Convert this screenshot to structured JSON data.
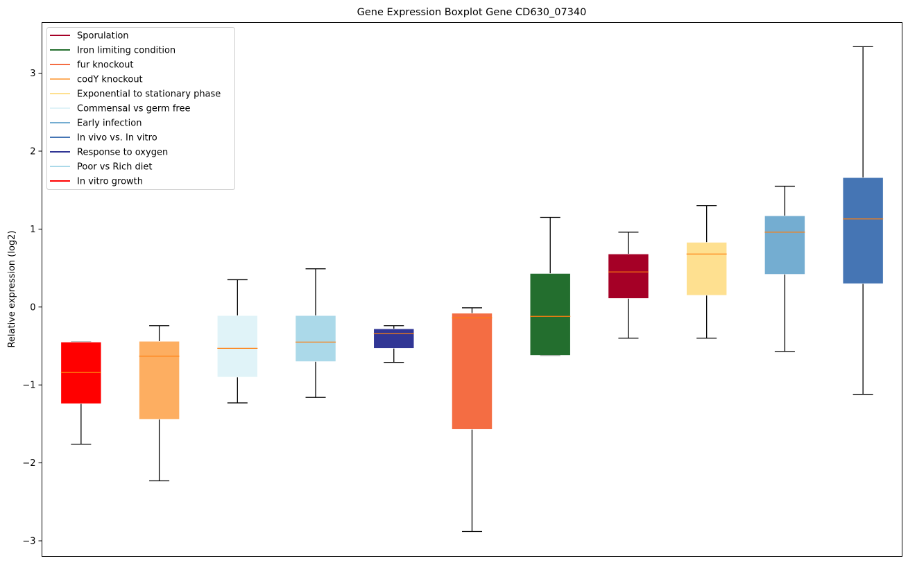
{
  "chart_data": {
    "type": "boxplot",
    "title": "Gene Expression Boxplot Gene CD630_07340",
    "xlabel": "",
    "ylabel": "Relative expression (log2)",
    "ylim": [
      -3.2,
      3.65
    ],
    "yticks": [
      -3,
      -2,
      -1,
      0,
      1,
      2,
      3
    ],
    "ytick_labels": [
      "−3",
      "−2",
      "−1",
      "0",
      "1",
      "2",
      "3"
    ],
    "grid": false,
    "legend_position": "top-left",
    "median_color": "#ff7f0e",
    "legend": [
      {
        "label": "Sporulation",
        "color": "#a50026"
      },
      {
        "label": "Iron limiting condition",
        "color": "#236e2e"
      },
      {
        "label": "fur knockout",
        "color": "#f46d43"
      },
      {
        "label": "codY knockout",
        "color": "#fdae61"
      },
      {
        "label": "Exponential to stationary phase",
        "color": "#fee090"
      },
      {
        "label": "Commensal vs germ free",
        "color": "#e0f3f8"
      },
      {
        "label": "Early infection",
        "color": "#74add1"
      },
      {
        "label": "In vivo vs. In vitro",
        "color": "#4575b4"
      },
      {
        "label": "Response to oxygen",
        "color": "#313695"
      },
      {
        "label": "Poor vs Rich diet",
        "color": "#abd9e9"
      },
      {
        "label": "In vitro growth",
        "color": "#ff0000"
      }
    ],
    "boxes": [
      {
        "name": "In vitro growth",
        "color": "#ff0000",
        "whisker_low": -1.76,
        "q1": -1.24,
        "median": -0.84,
        "q3": -0.45,
        "whisker_high": -0.45
      },
      {
        "name": "codY knockout",
        "color": "#fdae61",
        "whisker_low": -2.23,
        "q1": -1.44,
        "median": -0.63,
        "q3": -0.44,
        "whisker_high": -0.24
      },
      {
        "name": "Commensal vs germ free",
        "color": "#e0f3f8",
        "whisker_low": -1.23,
        "q1": -0.9,
        "median": -0.53,
        "q3": -0.11,
        "whisker_high": 0.35
      },
      {
        "name": "Poor vs Rich diet",
        "color": "#abd9e9",
        "whisker_low": -1.16,
        "q1": -0.7,
        "median": -0.45,
        "q3": -0.11,
        "whisker_high": 0.49
      },
      {
        "name": "Response to oxygen",
        "color": "#313695",
        "whisker_low": -0.71,
        "q1": -0.53,
        "median": -0.34,
        "q3": -0.28,
        "whisker_high": -0.24
      },
      {
        "name": "fur knockout",
        "color": "#f46d43",
        "whisker_low": -2.88,
        "q1": -1.57,
        "median": -0.14,
        "q3": -0.08,
        "whisker_high": -0.01
      },
      {
        "name": "Iron limiting condition",
        "color": "#236e2e",
        "whisker_low": -0.62,
        "q1": -0.62,
        "median": -0.12,
        "q3": 0.43,
        "whisker_high": 1.15
      },
      {
        "name": "Sporulation",
        "color": "#a50026",
        "whisker_low": -0.4,
        "q1": 0.11,
        "median": 0.45,
        "q3": 0.68,
        "whisker_high": 0.96
      },
      {
        "name": "Exponential to stationary phase",
        "color": "#fee090",
        "whisker_low": -0.4,
        "q1": 0.15,
        "median": 0.68,
        "q3": 0.83,
        "whisker_high": 1.3
      },
      {
        "name": "Early infection",
        "color": "#74add1",
        "whisker_low": -0.57,
        "q1": 0.42,
        "median": 0.96,
        "q3": 1.17,
        "whisker_high": 1.55
      },
      {
        "name": "In vivo vs. In vitro",
        "color": "#4575b4",
        "whisker_low": -1.12,
        "q1": 0.3,
        "median": 1.13,
        "q3": 1.66,
        "whisker_high": 3.34
      }
    ]
  }
}
